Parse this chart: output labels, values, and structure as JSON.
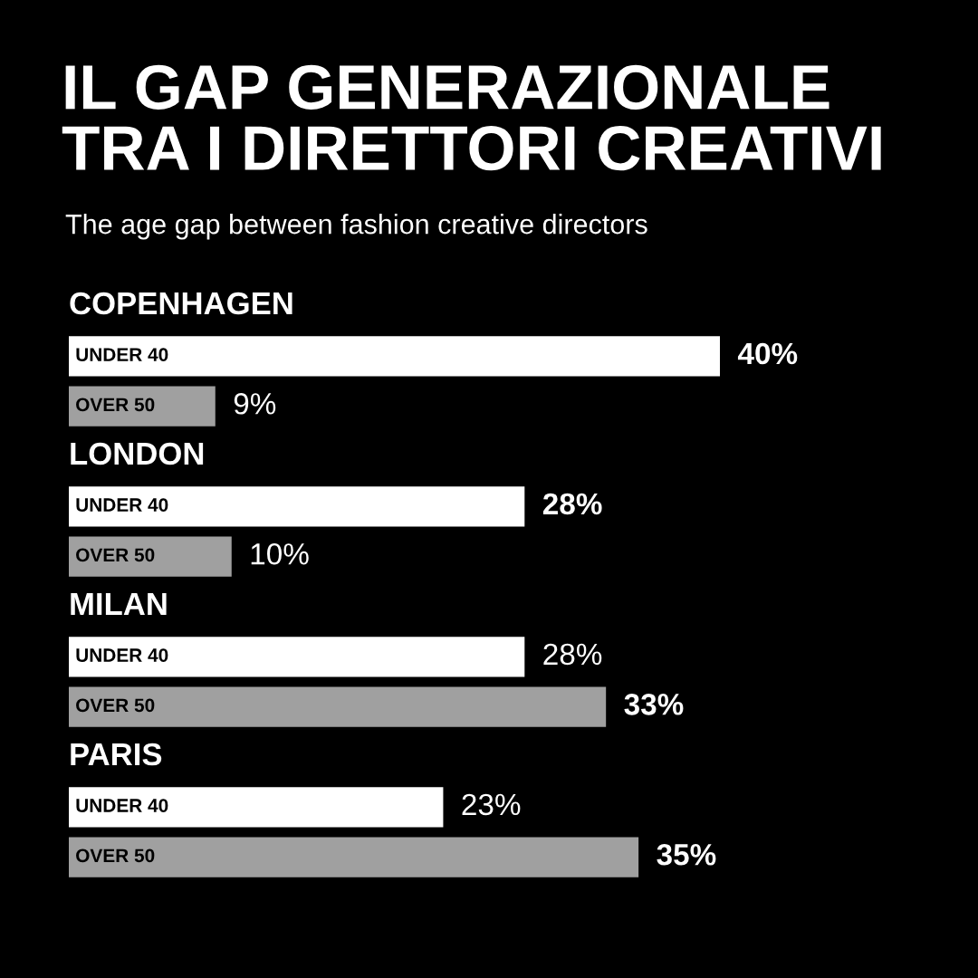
{
  "chart_data": {
    "type": "bar",
    "orientation": "horizontal",
    "title": "IL GAP GENERAZIONALE\nTRA I DIRETTORI CREATIVI",
    "subtitle": "The age gap between fashion creative directors",
    "categories": [
      "COPENHAGEN",
      "LONDON",
      "MILAN",
      "PARIS"
    ],
    "series": [
      {
        "name": "UNDER 40",
        "color": "#ffffff",
        "values": [
          40,
          28,
          28,
          23
        ],
        "value_labels": [
          "40%",
          "28%",
          "28%",
          "23%"
        ]
      },
      {
        "name": "OVER 50",
        "color": "#a0a0a0",
        "values": [
          9,
          10,
          33,
          35
        ],
        "value_labels": [
          "9%",
          "10%",
          "33%",
          "35%"
        ]
      }
    ],
    "data_labels": true,
    "legend": false
  }
}
